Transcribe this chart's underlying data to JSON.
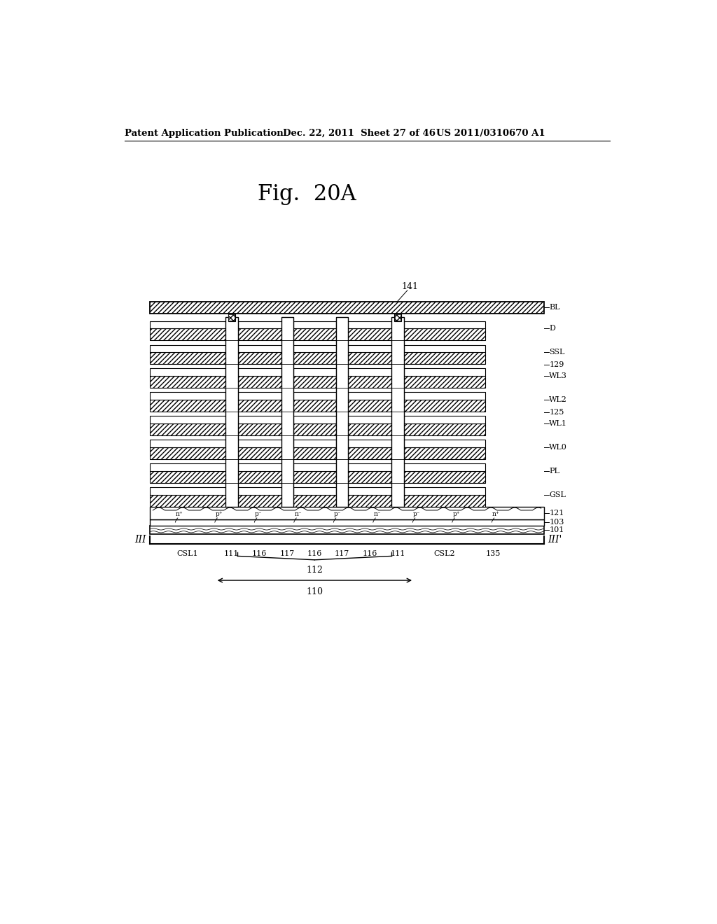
{
  "bg_color": "#ffffff",
  "title": "Fig.  20A",
  "header_left": "Patent Application Publication",
  "header_mid": "Dec. 22, 2011  Sheet 27 of 46",
  "header_right": "US 2011/0310670 A1",
  "label_141": "141",
  "label_BL": "BL",
  "label_D": "D",
  "label_SSL": "SSL",
  "label_129": "129",
  "label_WL3": "WL3",
  "label_WL2": "WL2",
  "label_125": "125",
  "label_WL1": "WL1",
  "label_WL0": "WL0",
  "label_PL": "PL",
  "label_GSL": "GSL",
  "label_121": "121",
  "label_103": "103",
  "label_101": "101",
  "label_III": "III",
  "label_IIIp": "III'",
  "label_CSL1": "CSL1",
  "label_111a": "111",
  "label_116a": "116",
  "label_117a": "117",
  "label_116b": "116",
  "label_117b": "117",
  "label_116c": "116",
  "label_111b": "111",
  "label_CSL2": "CSL2",
  "label_135": "135",
  "label_112": "112",
  "label_110": "110"
}
